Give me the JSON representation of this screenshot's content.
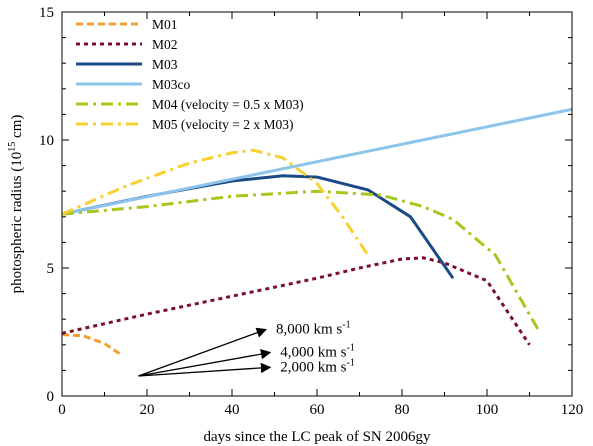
{
  "chart_data": {
    "type": "line",
    "xlabel": "days since the LC peak of SN 2006gy",
    "ylabel": "photospheric radius (10",
    "ylabel_sup": "15",
    "ylabel_end": " cm)",
    "xlim": [
      0,
      120
    ],
    "ylim": [
      0,
      15
    ],
    "x_ticks": [
      0,
      20,
      40,
      60,
      80,
      100,
      120
    ],
    "y_ticks": [
      0,
      5,
      10,
      15
    ],
    "x_tick_labels": [
      "0",
      "20",
      "40",
      "60",
      "80",
      "100",
      "120"
    ],
    "y_tick_labels": [
      "0",
      "5",
      "10",
      "15"
    ],
    "grid": false,
    "legend_position": "top-left",
    "series": [
      {
        "name": "M01",
        "color": "#f5a033",
        "style": "dashed",
        "x": [
          0,
          5,
          10,
          14
        ],
        "y": [
          2.4,
          2.35,
          2.05,
          1.6
        ]
      },
      {
        "name": "M02",
        "color": "#7a1030",
        "style": "dotted",
        "x": [
          0,
          20,
          40,
          60,
          70,
          80,
          85,
          90,
          100,
          110
        ],
        "y": [
          2.45,
          3.2,
          3.9,
          4.6,
          5.0,
          5.35,
          5.4,
          5.2,
          4.5,
          2.0
        ]
      },
      {
        "name": "M03",
        "color": "#1a4a86",
        "style": "solid",
        "x": [
          0,
          20,
          40,
          52,
          60,
          72,
          82,
          92
        ],
        "y": [
          7.1,
          7.8,
          8.4,
          8.6,
          8.55,
          8.05,
          7.0,
          4.6
        ]
      },
      {
        "name": "M03co",
        "color": "#8cc4ec",
        "style": "solid",
        "x": [
          0,
          120
        ],
        "y": [
          7.1,
          11.2
        ]
      },
      {
        "name": "M04 (velocity = 0.5 x M03)",
        "color": "#a6c81e",
        "style": "dashdot",
        "x": [
          0,
          20,
          40,
          60,
          75,
          85,
          92,
          102,
          112
        ],
        "y": [
          7.1,
          7.4,
          7.8,
          8.0,
          7.85,
          7.4,
          6.9,
          5.5,
          2.6
        ]
      },
      {
        "name": "M05 (velocity = 2 x M03)",
        "color": "#f8d030",
        "style": "dashdot",
        "x": [
          0,
          15,
          30,
          40,
          45,
          52,
          60,
          66,
          72
        ],
        "y": [
          7.1,
          8.2,
          9.1,
          9.5,
          9.6,
          9.3,
          8.3,
          7.0,
          5.5
        ]
      }
    ],
    "annotations": [
      {
        "text": "8,000 km s",
        "sup": "-1",
        "arrow_from": [
          18,
          0.78
        ],
        "arrow_to": [
          48,
          2.6
        ]
      },
      {
        "text": "4,000 km s",
        "sup": "-1",
        "arrow_from": [
          18,
          0.78
        ],
        "arrow_to": [
          49,
          1.7
        ]
      },
      {
        "text": "2,000 km s",
        "sup": "-1",
        "arrow_from": [
          18,
          0.78
        ],
        "arrow_to": [
          49,
          1.12
        ]
      }
    ]
  }
}
